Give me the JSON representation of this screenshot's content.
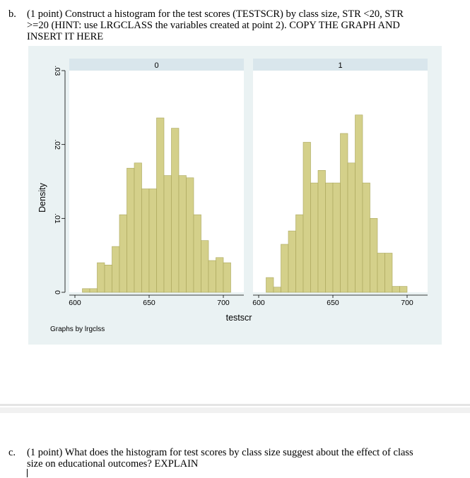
{
  "question_b": {
    "label": "b.",
    "lines": [
      "(1 point) Construct a histogram for the test scores (TESTSCR) by class size, STR <20, STR",
      ">=20 (HINT: use LRGCLASS the variables created at point 2). COPY THE GRAPH AND",
      "INSERT IT HERE"
    ]
  },
  "question_c": {
    "label": "c.",
    "lines": [
      "(1 point) What does the histogram for test scores by class size suggest about the effect of class",
      "size on educational outcomes? EXPLAIN"
    ]
  },
  "colors": {
    "bar_fill": "#d4d08a",
    "bar_stroke": "#a9a55a",
    "panel_bg": "#ffffff",
    "outer_bg": "#eaf2f3",
    "header_bg": "#d9e6ec"
  },
  "chart_data": {
    "type": "bar",
    "subtype": "histogram",
    "xlabel": "testscr",
    "ylabel": "Density",
    "note": "Graphs by lrgclss",
    "xlim": [
      600,
      710
    ],
    "ylim": [
      0,
      0.03
    ],
    "xticks": [
      600,
      650,
      700
    ],
    "xtick_labels": [
      "600",
      "650",
      "700"
    ],
    "yticks": [
      0,
      0.01,
      0.02,
      0.03
    ],
    "ytick_labels": [
      "0",
      ".01",
      ".02",
      ".03"
    ],
    "bin_width": 5,
    "panels": [
      {
        "label": "0",
        "bins": [
          {
            "x": 605,
            "density": 0.0005
          },
          {
            "x": 610,
            "density": 0.0005
          },
          {
            "x": 615,
            "density": 0.004
          },
          {
            "x": 620,
            "density": 0.0037
          },
          {
            "x": 625,
            "density": 0.0062
          },
          {
            "x": 630,
            "density": 0.0105
          },
          {
            "x": 635,
            "density": 0.0168
          },
          {
            "x": 640,
            "density": 0.0175
          },
          {
            "x": 645,
            "density": 0.014
          },
          {
            "x": 650,
            "density": 0.014
          },
          {
            "x": 655,
            "density": 0.0236
          },
          {
            "x": 660,
            "density": 0.0158
          },
          {
            "x": 665,
            "density": 0.0222
          },
          {
            "x": 670,
            "density": 0.0158
          },
          {
            "x": 675,
            "density": 0.0155
          },
          {
            "x": 680,
            "density": 0.0105
          },
          {
            "x": 685,
            "density": 0.007
          },
          {
            "x": 690,
            "density": 0.0043
          },
          {
            "x": 695,
            "density": 0.0047
          },
          {
            "x": 700,
            "density": 0.004
          }
        ]
      },
      {
        "label": "1",
        "bins": [
          {
            "x": 605,
            "density": 0.002
          },
          {
            "x": 610,
            "density": 0.0007
          },
          {
            "x": 615,
            "density": 0.0065
          },
          {
            "x": 620,
            "density": 0.0083
          },
          {
            "x": 625,
            "density": 0.0105
          },
          {
            "x": 630,
            "density": 0.0203
          },
          {
            "x": 635,
            "density": 0.0148
          },
          {
            "x": 640,
            "density": 0.0165
          },
          {
            "x": 645,
            "density": 0.0148
          },
          {
            "x": 650,
            "density": 0.0148
          },
          {
            "x": 655,
            "density": 0.0215
          },
          {
            "x": 660,
            "density": 0.0175
          },
          {
            "x": 665,
            "density": 0.024
          },
          {
            "x": 670,
            "density": 0.0148
          },
          {
            "x": 675,
            "density": 0.01
          },
          {
            "x": 680,
            "density": 0.0053
          },
          {
            "x": 685,
            "density": 0.0053
          },
          {
            "x": 690,
            "density": 0.0008
          },
          {
            "x": 695,
            "density": 0.0008
          }
        ]
      }
    ]
  }
}
